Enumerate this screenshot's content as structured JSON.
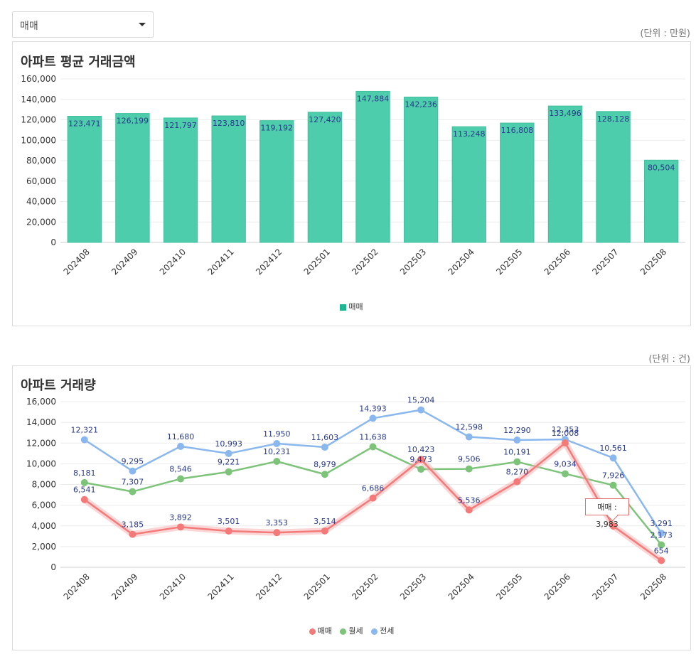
{
  "filter": {
    "selected": "매매",
    "icon": "chevron-down-icon"
  },
  "chart_data": [
    {
      "type": "bar",
      "title": "아파트 평균 거래금액",
      "unit_label": "(단위 : 만원)",
      "categories": [
        "202408",
        "202409",
        "202410",
        "202411",
        "202412",
        "202501",
        "202502",
        "202503",
        "202504",
        "202505",
        "202506",
        "202507",
        "202508"
      ],
      "series": [
        {
          "name": "매매",
          "color": "#4ecdac",
          "values": [
            123471,
            126199,
            121797,
            123810,
            119192,
            127420,
            147884,
            142236,
            113248,
            116808,
            133496,
            128128,
            80504
          ]
        }
      ],
      "value_labels": [
        "123,471",
        "126,199",
        "121,797",
        "123,810",
        "119,192",
        "127,420",
        "147,884",
        "142,236",
        "113,248",
        "116,808",
        "133,496",
        "128,128",
        "80,504"
      ],
      "y_ticks": [
        "0",
        "20,000",
        "40,000",
        "60,000",
        "80,000",
        "100,000",
        "120,000",
        "140,000",
        "160,000"
      ],
      "ylim": [
        0,
        160000
      ],
      "grid": true,
      "legend_position": "bottom"
    },
    {
      "type": "line",
      "title": "아파트 거래량",
      "unit_label": "(단위 : 건)",
      "categories": [
        "202408",
        "202409",
        "202410",
        "202411",
        "202412",
        "202501",
        "202502",
        "202503",
        "202504",
        "202505",
        "202506",
        "202507",
        "202508"
      ],
      "series": [
        {
          "name": "매매",
          "color": "#f47a7a",
          "values": [
            6541,
            3185,
            3892,
            3501,
            3353,
            3514,
            6686,
            10423,
            5536,
            8270,
            12008,
            3983,
            654
          ],
          "labels": [
            "6,541",
            "3,185",
            "3,892",
            "3,501",
            "3,353",
            "3,514",
            "6,686",
            "10,423",
            "5,536",
            "8,270",
            "12,008",
            "",
            "654"
          ]
        },
        {
          "name": "월세",
          "color": "#7dc47a",
          "values": [
            8181,
            7307,
            8546,
            9221,
            10231,
            8979,
            11638,
            9473,
            9506,
            10191,
            9034,
            7926,
            2173
          ],
          "labels": [
            "8,181",
            "7,307",
            "8,546",
            "9,221",
            "10,231",
            "8,979",
            "11,638",
            "9,473",
            "9,506",
            "10,191",
            "9,034",
            "7,926",
            "2,173"
          ]
        },
        {
          "name": "전세",
          "color": "#8ab8ee",
          "values": [
            12321,
            9295,
            11680,
            10993,
            11950,
            11603,
            14393,
            15204,
            12598,
            12290,
            12353,
            10561,
            3291
          ],
          "labels": [
            "12,321",
            "9,295",
            "11,680",
            "10,993",
            "11,950",
            "11,603",
            "14,393",
            "15,204",
            "12,598",
            "12,290",
            "12,353",
            "10,561",
            "3,291"
          ]
        }
      ],
      "y_ticks": [
        "0",
        "2,000",
        "4,000",
        "6,000",
        "8,000",
        "10,000",
        "12,000",
        "14,000",
        "16,000"
      ],
      "ylim": [
        0,
        16000
      ],
      "grid": true,
      "legend_position": "bottom",
      "tooltip": "매매 : 3,983"
    }
  ]
}
